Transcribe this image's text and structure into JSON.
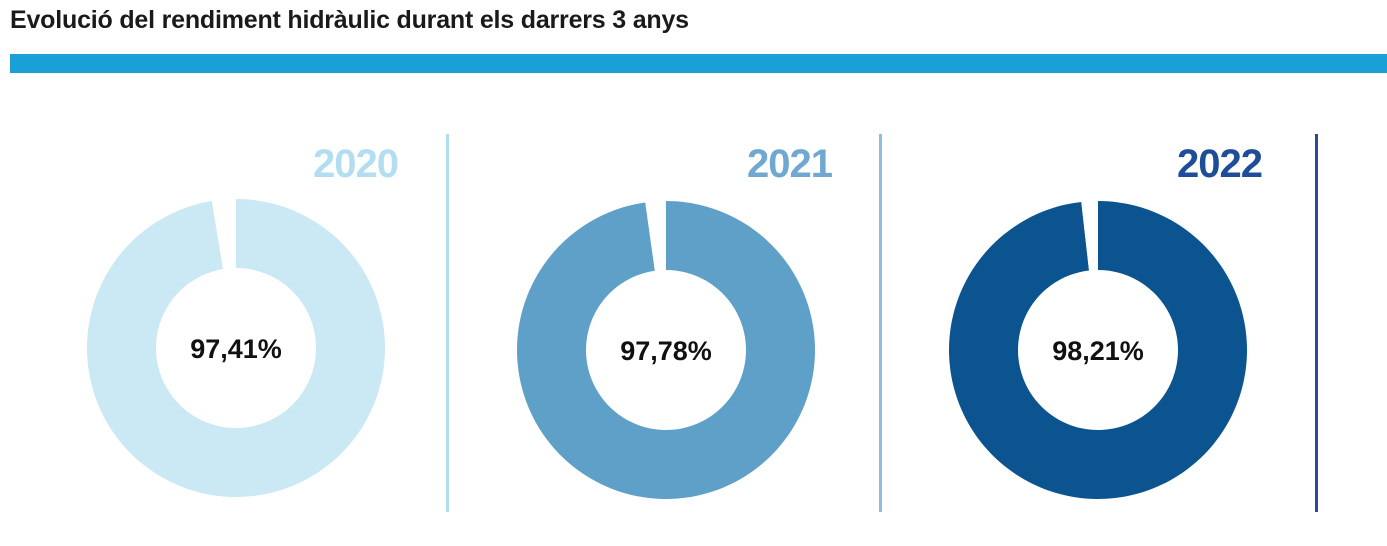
{
  "title": "Evolució del rendiment hidràulic durant els darrers 3 anys",
  "colors": {
    "title_bar": "#1a9fd6",
    "gap": "#ffffff",
    "label": "#111111"
  },
  "chart_data": [
    {
      "type": "pie",
      "year": "2020",
      "value": 97.41,
      "label": "97,41%",
      "color": "#cbe9f5",
      "year_color": "#b3def2",
      "divider_color": "#b3def2"
    },
    {
      "type": "pie",
      "year": "2021",
      "value": 97.78,
      "label": "97,78%",
      "color": "#5fa0c9",
      "year_color": "#6fa8d1",
      "divider_color": "#8fbce0"
    },
    {
      "type": "pie",
      "year": "2022",
      "value": 98.21,
      "label": "98,21%",
      "color": "#0b5490",
      "year_color": "#1f4e99",
      "divider_color": "#2a4a95"
    }
  ]
}
